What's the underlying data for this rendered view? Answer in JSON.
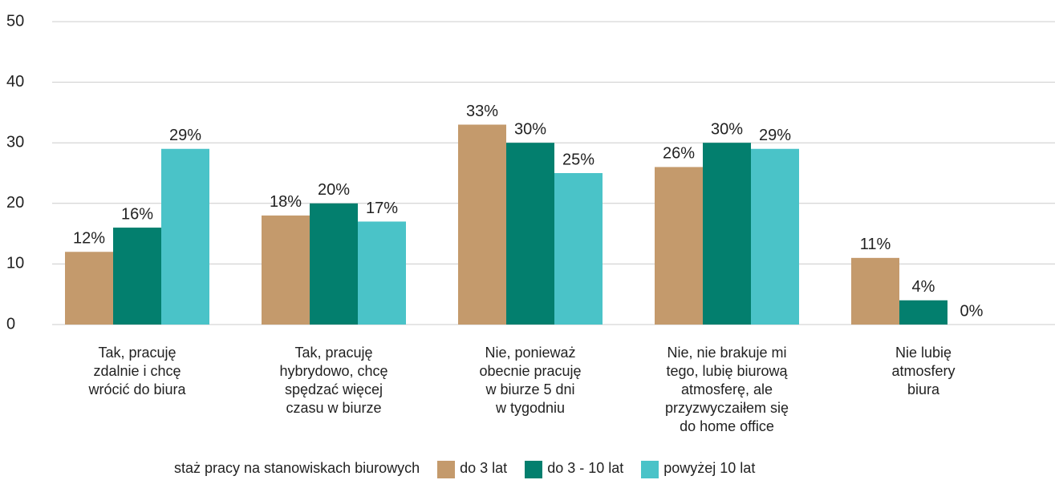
{
  "chart_data": {
    "type": "bar",
    "categories": [
      "Tak, pracuję\nzdalnie i chcę\nwrócić do biura",
      "Tak, pracuję\nhybrydowo, chcę\nspędzać więcej\nczasu w biurze",
      "Nie, ponieważ\nobecnie pracuję\nw biurze 5 dni\nw tygodniu",
      "Nie, nie brakuje mi\ntego, lubię biurową\natmosferę, ale\nprzyzwyczaiłem się\ndo home office",
      "Nie lubię\natmosfery\nbiura"
    ],
    "legend_title": "staż pracy na stanowiskach biurowych",
    "series": [
      {
        "name": "do 3 lat",
        "color": "#c49a6c",
        "values": [
          12,
          18,
          33,
          26,
          11
        ],
        "value_labels": [
          "12%",
          "18%",
          "33%",
          "26%",
          "11%"
        ]
      },
      {
        "name": "do 3 - 10 lat",
        "color": "#037f6e",
        "values": [
          16,
          20,
          30,
          30,
          4
        ],
        "value_labels": [
          "16%",
          "20%",
          "30%",
          "30%",
          "4%"
        ]
      },
      {
        "name": "powyżej 10 lat",
        "color": "#4ac3c8",
        "values": [
          29,
          17,
          25,
          29,
          0
        ],
        "value_labels": [
          "29%",
          "17%",
          "25%",
          "29%",
          "0%"
        ]
      }
    ],
    "ylim": [
      0,
      50
    ],
    "yticks": [
      0,
      10,
      20,
      30,
      40,
      50
    ],
    "grid": true,
    "legend": "bottom"
  }
}
